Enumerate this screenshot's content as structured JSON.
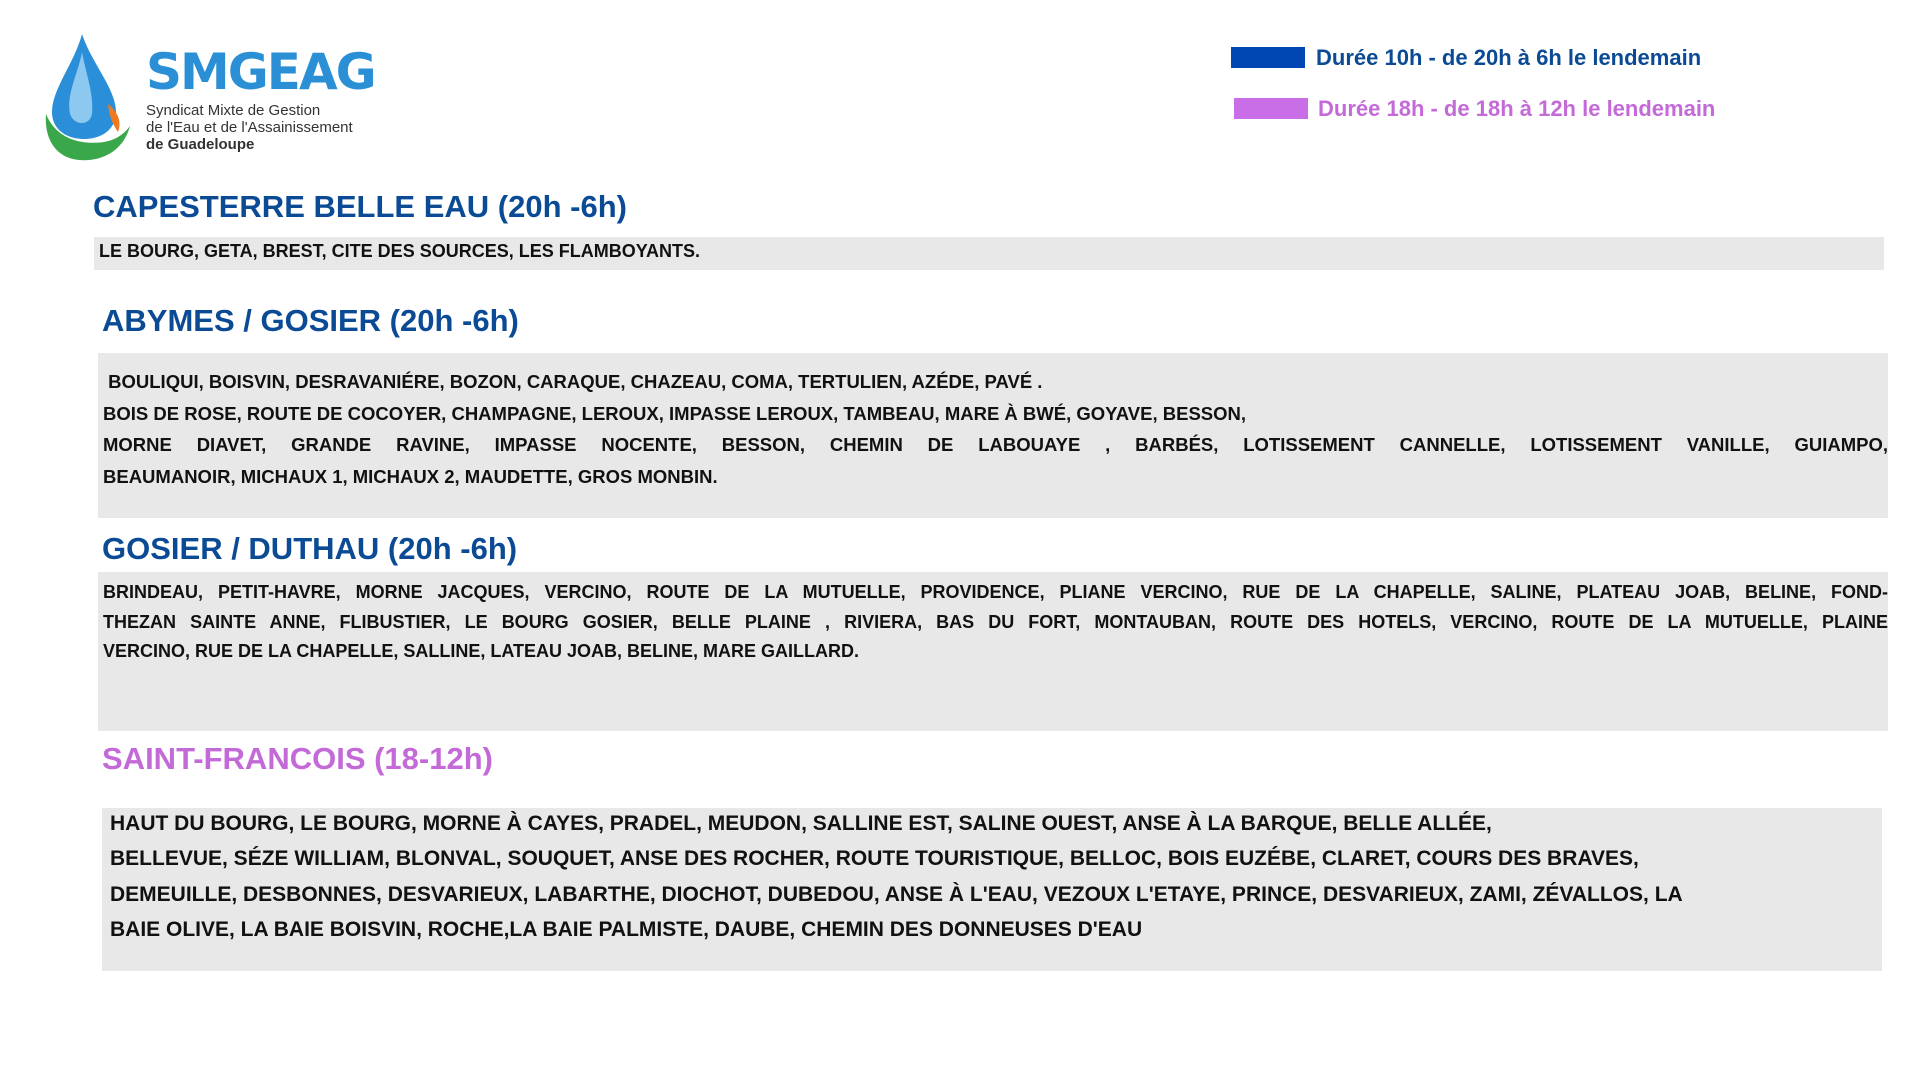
{
  "logo": {
    "name": "SMGEAG",
    "subtitle_lines": [
      "Syndicat Mixte de Gestion",
      "de l'Eau et de l'Assainissement",
      "de Guadeloupe"
    ]
  },
  "legend": [
    {
      "label": "Durée 10h - de 20h à 6h le lendemain",
      "color": "#0047b3",
      "text_color": "#0b4a94"
    },
    {
      "label": "Durée 18h - de 18h à 12h le lendemain",
      "color": "#c96ee6",
      "text_color": "#c46ad8"
    }
  ],
  "sections": [
    {
      "title": "CAPESTERRE BELLE EAU (20h -6h)",
      "color": "#0b4a94",
      "lines": [
        "LE BOURG,  GETA, BREST, CITE DES SOURCES, LES FLAMBOYANTS."
      ]
    },
    {
      "title": "ABYMES / GOSIER  (20h -6h)",
      "color": "#0b4a94",
      "lines": [
        " BOULIQUI, BOISVIN, DESRAVANIÉRE, BOZON, CARAQUE, CHAZEAU, COMA, TERTULIEN, AZÉDE, PAVÉ .",
        "BOIS DE ROSE, ROUTE DE COCOYER, CHAMPAGNE, LEROUX, IMPASSE LEROUX, TAMBEAU, MARE À BWÉ, GOYAVE, BESSON,",
        "MORNE DIAVET, GRANDE RAVINE, IMPASSE NOCENTE, BESSON, CHEMIN DE LABOUAYE , BARBÉS, LOTISSEMENT CANNELLE, LOTISSEMENT VANILLE, GUIAMPO,",
        "BEAUMANOIR, MICHAUX 1, MICHAUX 2, MAUDETTE, GROS MONBIN."
      ]
    },
    {
      "title": "GOSIER / DUTHAU  (20h -6h)",
      "color": "#0b4a94",
      "lines": [
        "BRINDEAU, PETIT-HAVRE, MORNE JACQUES, VERCINO, ROUTE DE LA MUTUELLE, PROVIDENCE, PLIANE VERCINO, RUE DE LA CHAPELLE, SALINE, PLATEAU JOAB, BELINE, FOND-",
        "THEZAN SAINTE ANNE, FLIBUSTIER, LE BOURG GOSIER, BELLE PLAINE , RIVIERA, BAS DU FORT, MONTAUBAN, ROUTE DES HOTELS, VERCINO, ROUTE DE LA MUTUELLE, PLAINE",
        "VERCINO, RUE DE LA CHAPELLE, SALLINE, LATEAU JOAB, BELINE, MARE GAILLARD."
      ]
    },
    {
      "title": "SAINT-FRANCOIS (18-12h)",
      "color": "#c46ad8",
      "lines": [
        "HAUT DU BOURG, LE BOURG, MORNE À CAYES, PRADEL, MEUDON, SALLINE EST, SALINE OUEST, ANSE À LA BARQUE, BELLE ALLÉE,",
        "BELLEVUE, SÉZE WILLIAM, BLONVAL, SOUQUET, ANSE DES ROCHER, ROUTE TOURISTIQUE, BELLOC, BOIS EUZÉBE, CLARET, COURS DES BRAVES,",
        "DEMEUILLE, DESBONNES, DESVARIEUX, LABARTHE, DIOCHOT, DUBEDOU, ANSE À L'EAU, VEZOUX L'ETAYE, PRINCE, DESVARIEUX, ZAMI, ZÉVALLOS, LA",
        "BAIE OLIVE, LA BAIE BOISVIN, ROCHE,LA BAIE PALMISTE, DAUBE, CHEMIN DES DONNEUSES D'EAU"
      ]
    }
  ]
}
